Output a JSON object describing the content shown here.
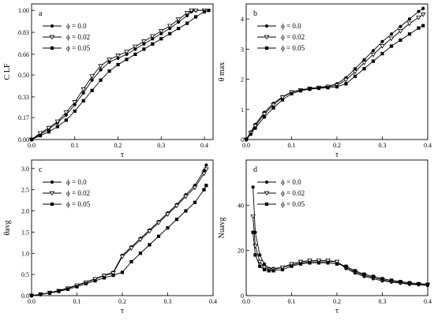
{
  "chart_data": [
    {
      "type": "line",
      "panel_label": "a",
      "xlabel": "τ",
      "ylabel": "C LF",
      "xlim": [
        0,
        0.42
      ],
      "ylim": [
        0,
        1.05
      ],
      "x_ticks": [
        0.0,
        0.1,
        0.2,
        0.3,
        0.4
      ],
      "x_tick_labels": [
        "0.0",
        "0.1",
        "0.2",
        "0.3",
        "0.4"
      ],
      "y_ticks": [
        0.0,
        0.17,
        0.33,
        0.5,
        0.66,
        0.83,
        1.0
      ],
      "y_tick_labels": [
        "0.00",
        "0.17",
        "0.33",
        "0.50",
        "0.66",
        "0.83",
        "1.00"
      ],
      "legend_position": "top-left",
      "series": [
        {
          "name": "ϕ = 0.0",
          "marker": "circle",
          "x": [
            0,
            0.02,
            0.04,
            0.06,
            0.08,
            0.1,
            0.12,
            0.14,
            0.16,
            0.18,
            0.2,
            0.22,
            0.24,
            0.26,
            0.28,
            0.3,
            0.32,
            0.34,
            0.36,
            0.37,
            0.38,
            0.4
          ],
          "y": [
            0,
            0.04,
            0.08,
            0.13,
            0.19,
            0.27,
            0.36,
            0.46,
            0.54,
            0.6,
            0.63,
            0.66,
            0.7,
            0.74,
            0.78,
            0.82,
            0.86,
            0.91,
            0.96,
            0.99,
            1.0,
            1.0
          ]
        },
        {
          "name": "ϕ = 0.02",
          "marker": "triangle-down",
          "x": [
            0,
            0.02,
            0.04,
            0.06,
            0.08,
            0.1,
            0.12,
            0.14,
            0.16,
            0.18,
            0.2,
            0.22,
            0.24,
            0.26,
            0.28,
            0.3,
            0.32,
            0.34,
            0.36,
            0.37,
            0.38,
            0.4
          ],
          "y": [
            0,
            0.05,
            0.09,
            0.14,
            0.21,
            0.29,
            0.39,
            0.49,
            0.57,
            0.62,
            0.65,
            0.68,
            0.72,
            0.76,
            0.8,
            0.84,
            0.88,
            0.93,
            0.98,
            1.0,
            1.0,
            1.0
          ]
        },
        {
          "name": "ϕ = 0.05",
          "marker": "square",
          "x": [
            0,
            0.02,
            0.04,
            0.06,
            0.08,
            0.1,
            0.12,
            0.14,
            0.16,
            0.18,
            0.2,
            0.22,
            0.24,
            0.26,
            0.28,
            0.3,
            0.32,
            0.34,
            0.36,
            0.38,
            0.4,
            0.41
          ],
          "y": [
            0,
            0.03,
            0.06,
            0.1,
            0.15,
            0.22,
            0.3,
            0.38,
            0.46,
            0.53,
            0.58,
            0.62,
            0.66,
            0.7,
            0.74,
            0.78,
            0.82,
            0.86,
            0.9,
            0.95,
            0.99,
            1.0
          ]
        }
      ]
    },
    {
      "type": "line",
      "panel_label": "b",
      "xlabel": "τ",
      "ylabel": "θ max",
      "xlim": [
        0,
        0.4
      ],
      "ylim": [
        0,
        4.5
      ],
      "x_ticks": [
        0.0,
        0.1,
        0.2,
        0.3,
        0.4
      ],
      "x_tick_labels": [
        "0.0",
        "0.1",
        "0.2",
        "0.3",
        "0.4"
      ],
      "y_ticks": [
        0,
        1,
        2,
        3,
        4
      ],
      "y_tick_labels": [
        "0",
        "1",
        "2",
        "3",
        "4"
      ],
      "legend_position": "top-left",
      "series": [
        {
          "name": "ϕ = 0.0",
          "marker": "circle",
          "x": [
            0,
            0.01,
            0.02,
            0.04,
            0.06,
            0.08,
            0.1,
            0.12,
            0.14,
            0.16,
            0.18,
            0.2,
            0.22,
            0.24,
            0.26,
            0.28,
            0.3,
            0.32,
            0.34,
            0.36,
            0.38,
            0.39
          ],
          "y": [
            0,
            0.25,
            0.5,
            0.9,
            1.2,
            1.42,
            1.58,
            1.65,
            1.7,
            1.73,
            1.77,
            1.85,
            2.05,
            2.35,
            2.65,
            2.95,
            3.25,
            3.5,
            3.75,
            4.0,
            4.25,
            4.35
          ]
        },
        {
          "name": "ϕ = 0.02",
          "marker": "triangle-down",
          "x": [
            0,
            0.01,
            0.02,
            0.04,
            0.06,
            0.08,
            0.1,
            0.12,
            0.14,
            0.16,
            0.18,
            0.2,
            0.22,
            0.24,
            0.26,
            0.28,
            0.3,
            0.32,
            0.34,
            0.36,
            0.38,
            0.39
          ],
          "y": [
            0,
            0.22,
            0.45,
            0.85,
            1.15,
            1.4,
            1.57,
            1.64,
            1.69,
            1.72,
            1.75,
            1.8,
            1.98,
            2.25,
            2.55,
            2.82,
            3.1,
            3.35,
            3.6,
            3.85,
            4.05,
            4.15
          ]
        },
        {
          "name": "ϕ = 0.05",
          "marker": "square",
          "x": [
            0,
            0.01,
            0.02,
            0.04,
            0.06,
            0.08,
            0.1,
            0.12,
            0.14,
            0.16,
            0.18,
            0.2,
            0.22,
            0.24,
            0.26,
            0.28,
            0.3,
            0.32,
            0.34,
            0.36,
            0.38,
            0.39
          ],
          "y": [
            0,
            0.18,
            0.38,
            0.75,
            1.05,
            1.32,
            1.52,
            1.62,
            1.67,
            1.7,
            1.72,
            1.75,
            1.85,
            2.1,
            2.35,
            2.6,
            2.85,
            3.1,
            3.3,
            3.5,
            3.7,
            3.78
          ]
        }
      ]
    },
    {
      "type": "line",
      "panel_label": "c",
      "xlabel": "τ",
      "ylabel": "θavg",
      "xlim": [
        0,
        0.4
      ],
      "ylim": [
        0,
        3.2
      ],
      "x_ticks": [
        0.0,
        0.1,
        0.2,
        0.3,
        0.4
      ],
      "x_tick_labels": [
        "0.0",
        "0.1",
        "0.2",
        "0.3",
        "0.4"
      ],
      "y_ticks": [
        0.0,
        0.5,
        1.0,
        1.5,
        2.0,
        2.5,
        3.0
      ],
      "y_tick_labels": [
        "0.0",
        "0.5",
        "1.0",
        "1.5",
        "2.0",
        "2.5",
        "3.0"
      ],
      "legend_position": "top-left",
      "series": [
        {
          "name": "ϕ = 0.0",
          "marker": "circle",
          "x": [
            0,
            0.02,
            0.04,
            0.06,
            0.08,
            0.1,
            0.12,
            0.14,
            0.16,
            0.18,
            0.2,
            0.22,
            0.24,
            0.26,
            0.28,
            0.3,
            0.32,
            0.34,
            0.36,
            0.38,
            0.385
          ],
          "y": [
            0,
            0.03,
            0.07,
            0.12,
            0.18,
            0.25,
            0.32,
            0.4,
            0.48,
            0.55,
            0.95,
            1.15,
            1.35,
            1.55,
            1.75,
            1.95,
            2.15,
            2.38,
            2.6,
            2.95,
            3.08
          ]
        },
        {
          "name": "ϕ = 0.02",
          "marker": "triangle-down",
          "x": [
            0,
            0.02,
            0.04,
            0.06,
            0.08,
            0.1,
            0.12,
            0.14,
            0.16,
            0.18,
            0.2,
            0.22,
            0.24,
            0.26,
            0.28,
            0.3,
            0.32,
            0.34,
            0.36,
            0.38,
            0.385
          ],
          "y": [
            0,
            0.03,
            0.07,
            0.11,
            0.17,
            0.24,
            0.31,
            0.39,
            0.47,
            0.53,
            0.92,
            1.12,
            1.32,
            1.52,
            1.72,
            1.92,
            2.12,
            2.34,
            2.55,
            2.88,
            2.98
          ]
        },
        {
          "name": "ϕ = 0.05",
          "marker": "square",
          "x": [
            0,
            0.02,
            0.04,
            0.06,
            0.08,
            0.1,
            0.12,
            0.14,
            0.16,
            0.18,
            0.2,
            0.22,
            0.24,
            0.26,
            0.28,
            0.3,
            0.32,
            0.34,
            0.36,
            0.38,
            0.385
          ],
          "y": [
            0,
            0.03,
            0.06,
            0.1,
            0.15,
            0.21,
            0.28,
            0.35,
            0.42,
            0.48,
            0.55,
            0.8,
            1.0,
            1.2,
            1.4,
            1.6,
            1.8,
            2.0,
            2.2,
            2.5,
            2.6
          ]
        }
      ]
    },
    {
      "type": "line",
      "panel_label": "d",
      "xlabel": "τ",
      "ylabel": "Nuavg",
      "xlim": [
        0,
        0.4
      ],
      "ylim": [
        0,
        60
      ],
      "x_ticks": [
        0.0,
        0.1,
        0.2,
        0.3,
        0.4
      ],
      "x_tick_labels": [
        "0.0",
        "0.1",
        "0.2",
        "0.3",
        "0.4"
      ],
      "y_ticks": [
        0,
        20,
        40
      ],
      "y_tick_labels": [
        "0",
        "20",
        "40"
      ],
      "legend_position": "top-left",
      "series": [
        {
          "name": "ϕ = 0.0",
          "marker": "circle",
          "x": [
            0.015,
            0.02,
            0.03,
            0.04,
            0.05,
            0.06,
            0.08,
            0.1,
            0.12,
            0.14,
            0.16,
            0.18,
            0.2,
            0.22,
            0.24,
            0.26,
            0.28,
            0.3,
            0.32,
            0.34,
            0.36,
            0.38,
            0.4
          ],
          "y": [
            48,
            28,
            18,
            14,
            12,
            12,
            12.5,
            13.5,
            14.5,
            15,
            15,
            15,
            15,
            12,
            10,
            8.5,
            7.5,
            6.5,
            6,
            5.5,
            5,
            4.8,
            4.5
          ]
        },
        {
          "name": "ϕ = 0.02",
          "marker": "triangle-down",
          "x": [
            0.015,
            0.02,
            0.03,
            0.04,
            0.05,
            0.06,
            0.08,
            0.1,
            0.12,
            0.14,
            0.16,
            0.18,
            0.2,
            0.22,
            0.24,
            0.26,
            0.28,
            0.3,
            0.32,
            0.34,
            0.36,
            0.38,
            0.4
          ],
          "y": [
            35,
            22,
            15,
            12.5,
            11.5,
            11.5,
            12.5,
            14,
            15,
            15.5,
            15.5,
            15.5,
            15,
            12.5,
            10.5,
            9,
            8,
            7,
            6.3,
            5.8,
            5.3,
            5,
            4.8
          ]
        },
        {
          "name": "ϕ = 0.05",
          "marker": "square",
          "x": [
            0.015,
            0.02,
            0.03,
            0.04,
            0.05,
            0.06,
            0.08,
            0.1,
            0.12,
            0.14,
            0.16,
            0.18,
            0.2,
            0.22,
            0.24,
            0.26,
            0.28,
            0.3,
            0.32,
            0.34,
            0.36,
            0.38,
            0.4
          ],
          "y": [
            28,
            18,
            13,
            11.5,
            11,
            11,
            11.5,
            13,
            14,
            14.5,
            14.5,
            14.5,
            14,
            13,
            11,
            9.5,
            8.5,
            7.5,
            6.8,
            6.2,
            5.7,
            5.3,
            5
          ]
        }
      ]
    }
  ]
}
